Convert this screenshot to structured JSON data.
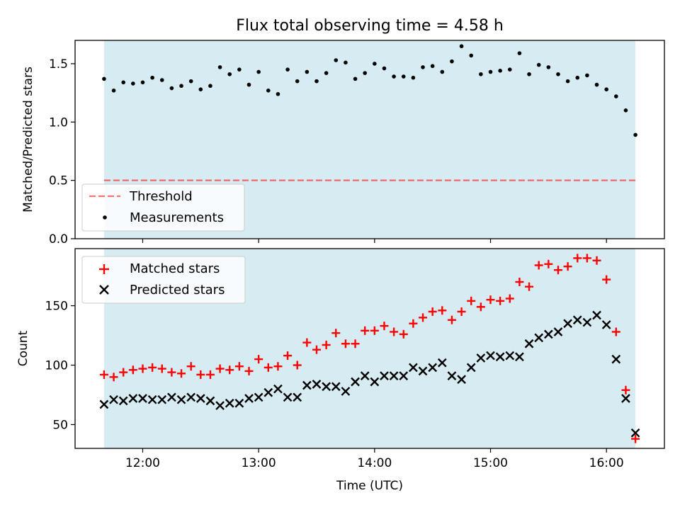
{
  "figure": {
    "title": "Flux total observing time = 4.58 h",
    "colors": {
      "shade": "#add8e6",
      "threshold": "#ff0000",
      "measurement": "#000000",
      "matched": "#ff0000",
      "predicted": "#000000"
    }
  },
  "chart_data": [
    {
      "type": "scatter",
      "ylabel": "Matched/Predicted stars",
      "ylim": [
        0,
        1.7
      ],
      "xlim": [
        "11:25",
        "16:30"
      ],
      "yticks": [
        0.0,
        0.5,
        1.0,
        1.5
      ],
      "ytick_labels": [
        "0.0",
        "0.5",
        "1.0",
        "1.5"
      ],
      "shaded_span": [
        "11:40",
        "16:15"
      ],
      "legend": {
        "placement": "lower-left",
        "entries": [
          "Threshold",
          "Measurements"
        ]
      },
      "threshold": {
        "name": "Threshold",
        "value": 0.5,
        "style": "dashed"
      },
      "series": [
        {
          "name": "Measurements",
          "marker": "dot",
          "x": [
            "11:40",
            "11:45",
            "11:50",
            "11:55",
            "12:00",
            "12:05",
            "12:10",
            "12:15",
            "12:20",
            "12:25",
            "12:30",
            "12:35",
            "12:40",
            "12:45",
            "12:50",
            "12:55",
            "13:00",
            "13:05",
            "13:10",
            "13:15",
            "13:20",
            "13:25",
            "13:30",
            "13:35",
            "13:40",
            "13:45",
            "13:50",
            "13:55",
            "14:00",
            "14:05",
            "14:10",
            "14:15",
            "14:20",
            "14:25",
            "14:30",
            "14:35",
            "14:40",
            "14:45",
            "14:50",
            "14:55",
            "15:00",
            "15:05",
            "15:10",
            "15:15",
            "15:20",
            "15:25",
            "15:30",
            "15:35",
            "15:40",
            "15:45",
            "15:50",
            "15:55",
            "16:00",
            "16:05",
            "16:10",
            "16:15"
          ],
          "y": [
            1.37,
            1.27,
            1.34,
            1.33,
            1.34,
            1.38,
            1.36,
            1.29,
            1.31,
            1.35,
            1.28,
            1.31,
            1.47,
            1.41,
            1.45,
            1.32,
            1.43,
            1.27,
            1.24,
            1.45,
            1.35,
            1.43,
            1.35,
            1.42,
            1.53,
            1.51,
            1.37,
            1.42,
            1.5,
            1.46,
            1.39,
            1.39,
            1.38,
            1.47,
            1.48,
            1.43,
            1.52,
            1.65,
            1.57,
            1.41,
            1.43,
            1.44,
            1.45,
            1.59,
            1.41,
            1.49,
            1.47,
            1.41,
            1.35,
            1.38,
            1.4,
            1.32,
            1.28,
            1.22,
            1.1,
            0.89
          ]
        }
      ]
    },
    {
      "type": "scatter",
      "xlabel": "Time (UTC)",
      "ylabel": "Count",
      "ylim": [
        30,
        198
      ],
      "xlim": [
        "11:25",
        "16:30"
      ],
      "yticks": [
        50,
        100,
        150
      ],
      "ytick_labels": [
        "50",
        "100",
        "150"
      ],
      "xticks": [
        "12:00",
        "13:00",
        "14:00",
        "15:00",
        "16:00"
      ],
      "xtick_labels": [
        "12:00",
        "13:00",
        "14:00",
        "15:00",
        "16:00"
      ],
      "shaded_span": [
        "11:40",
        "16:15"
      ],
      "legend": {
        "placement": "top-left",
        "entries": [
          "Matched stars",
          "Predicted stars"
        ]
      },
      "series": [
        {
          "name": "Matched stars",
          "marker": "plus",
          "x": [
            "11:40",
            "11:45",
            "11:50",
            "11:55",
            "12:00",
            "12:05",
            "12:10",
            "12:15",
            "12:20",
            "12:25",
            "12:30",
            "12:35",
            "12:40",
            "12:45",
            "12:50",
            "12:55",
            "13:00",
            "13:05",
            "13:10",
            "13:15",
            "13:20",
            "13:25",
            "13:30",
            "13:35",
            "13:40",
            "13:45",
            "13:50",
            "13:55",
            "14:00",
            "14:05",
            "14:10",
            "14:15",
            "14:20",
            "14:25",
            "14:30",
            "14:35",
            "14:40",
            "14:45",
            "14:50",
            "14:55",
            "15:00",
            "15:05",
            "15:10",
            "15:15",
            "15:20",
            "15:25",
            "15:30",
            "15:35",
            "15:40",
            "15:45",
            "15:50",
            "15:55",
            "16:00",
            "16:05",
            "16:10",
            "16:15"
          ],
          "y": [
            92,
            90,
            94,
            96,
            97,
            98,
            97,
            94,
            93,
            99,
            92,
            92,
            97,
            96,
            99,
            95,
            105,
            98,
            99,
            108,
            100,
            119,
            113,
            117,
            127,
            118,
            118,
            129,
            129,
            133,
            128,
            126,
            135,
            140,
            145,
            146,
            138,
            145,
            154,
            149,
            155,
            154,
            156,
            170,
            166,
            184,
            185,
            180,
            183,
            190,
            190,
            188,
            172,
            128,
            79,
            38
          ]
        },
        {
          "name": "Predicted stars",
          "marker": "x",
          "x": [
            "11:40",
            "11:45",
            "11:50",
            "11:55",
            "12:00",
            "12:05",
            "12:10",
            "12:15",
            "12:20",
            "12:25",
            "12:30",
            "12:35",
            "12:40",
            "12:45",
            "12:50",
            "12:55",
            "13:00",
            "13:05",
            "13:10",
            "13:15",
            "13:20",
            "13:25",
            "13:30",
            "13:35",
            "13:40",
            "13:45",
            "13:50",
            "13:55",
            "14:00",
            "14:05",
            "14:10",
            "14:15",
            "14:20",
            "14:25",
            "14:30",
            "14:35",
            "14:40",
            "14:45",
            "14:50",
            "14:55",
            "15:00",
            "15:05",
            "15:10",
            "15:15",
            "15:20",
            "15:25",
            "15:30",
            "15:35",
            "15:40",
            "15:45",
            "15:50",
            "15:55",
            "16:00",
            "16:05",
            "16:10",
            "16:15"
          ],
          "y": [
            67,
            71,
            70,
            72,
            72,
            71,
            71,
            73,
            71,
            73,
            72,
            70,
            66,
            68,
            68,
            72,
            73,
            77,
            80,
            73,
            73,
            83,
            84,
            82,
            82,
            78,
            86,
            91,
            86,
            91,
            91,
            91,
            98,
            95,
            98,
            102,
            91,
            88,
            98,
            106,
            108,
            107,
            108,
            107,
            118,
            123,
            126,
            128,
            135,
            138,
            136,
            142,
            134,
            105,
            72,
            43
          ]
        }
      ]
    }
  ]
}
